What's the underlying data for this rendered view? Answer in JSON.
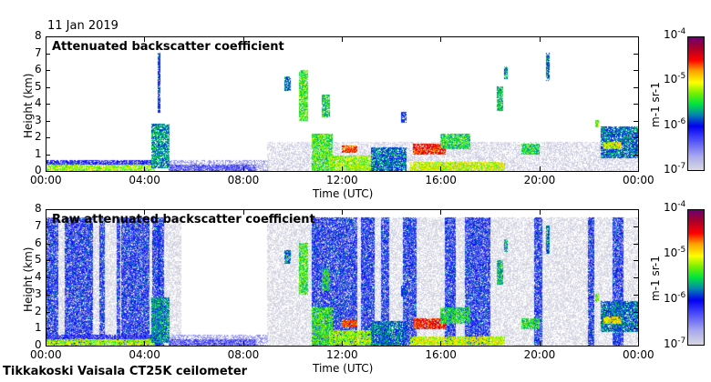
{
  "date_label": "11 Jan 2019",
  "footer": "Tikkakoski Vaisala CT25K ceilometer",
  "chart_data": [
    {
      "type": "heatmap",
      "title": "Attenuated backscatter coefficient",
      "xlabel": "Time (UTC)",
      "ylabel": "Height (km)",
      "xlim": [
        0,
        24
      ],
      "ylim": [
        0,
        8
      ],
      "x_ticks": [
        "00:00",
        "04:00",
        "08:00",
        "12:00",
        "16:00",
        "20:00",
        "00:00"
      ],
      "y_ticks": [
        "0",
        "1",
        "2",
        "3",
        "4",
        "5",
        "6",
        "7",
        "8"
      ],
      "colorbar": {
        "label": "m-1 sr-1",
        "range_log10": [
          -7,
          -4
        ],
        "ticks": [
          "-7",
          "-6",
          "-5",
          "-4"
        ]
      },
      "noise_columns": [],
      "background": [
        {
          "t0": 5,
          "t1": 9,
          "h0": 0,
          "h1": 0.6,
          "logv": -6.6
        },
        {
          "t0": 9,
          "t1": 24,
          "h0": 0,
          "h1": 1.7,
          "logv": -6.95
        }
      ],
      "features": [
        {
          "t0": 0,
          "t1": 4.4,
          "h0": 0,
          "h1": 0.4,
          "logv": -5.2
        },
        {
          "t0": 0,
          "t1": 4.4,
          "h0": 0.4,
          "h1": 0.6,
          "logv": -6.2
        },
        {
          "t0": 4.3,
          "t1": 5.0,
          "h0": 0.2,
          "h1": 2.8,
          "logv": -5.7
        },
        {
          "t0": 4.55,
          "t1": 4.65,
          "h0": 3.5,
          "h1": 7,
          "logv": -6.0
        },
        {
          "t0": 5,
          "t1": 8.5,
          "h0": 0,
          "h1": 0.35,
          "logv": -6.4
        },
        {
          "t0": 9.7,
          "t1": 9.9,
          "h0": 4.8,
          "h1": 5.6,
          "logv": -5.8
        },
        {
          "t0": 10.3,
          "t1": 10.6,
          "h0": 3,
          "h1": 6,
          "logv": -5.4
        },
        {
          "t0": 11.2,
          "t1": 11.5,
          "h0": 3.2,
          "h1": 4.5,
          "logv": -5.5
        },
        {
          "t0": 10.8,
          "t1": 11.6,
          "h0": 0,
          "h1": 2.2,
          "logv": -5.4
        },
        {
          "t0": 11.5,
          "t1": 13.2,
          "h0": 0,
          "h1": 0.9,
          "logv": -5.2
        },
        {
          "t0": 12.0,
          "t1": 12.6,
          "h0": 1.1,
          "h1": 1.5,
          "logv": -4.6
        },
        {
          "t0": 13.2,
          "t1": 14.6,
          "h0": 0,
          "h1": 1.4,
          "logv": -5.8
        },
        {
          "t0": 14.4,
          "t1": 14.6,
          "h0": 2.9,
          "h1": 3.5,
          "logv": -6.0
        },
        {
          "t0": 14.9,
          "t1": 16.2,
          "h0": 1.0,
          "h1": 1.6,
          "logv": -4.5
        },
        {
          "t0": 14.8,
          "t1": 18.6,
          "h0": 0,
          "h1": 0.5,
          "logv": -5.1
        },
        {
          "t0": 16.0,
          "t1": 17.2,
          "h0": 1.3,
          "h1": 2.2,
          "logv": -5.5
        },
        {
          "t0": 18.3,
          "t1": 18.5,
          "h0": 3.6,
          "h1": 5.0,
          "logv": -5.6
        },
        {
          "t0": 18.6,
          "t1": 18.7,
          "h0": 5.5,
          "h1": 6.2,
          "logv": -5.7
        },
        {
          "t0": 19.3,
          "t1": 20.0,
          "h0": 1.0,
          "h1": 1.6,
          "logv": -5.5
        },
        {
          "t0": 20.3,
          "t1": 20.4,
          "h0": 5.4,
          "h1": 7.0,
          "logv": -5.8
        },
        {
          "t0": 22.3,
          "t1": 22.4,
          "h0": 2.6,
          "h1": 3.0,
          "logv": -5.3
        },
        {
          "t0": 22.5,
          "t1": 24,
          "h0": 0.8,
          "h1": 2.6,
          "logv": -5.8
        },
        {
          "t0": 22.6,
          "t1": 23.3,
          "h0": 1.3,
          "h1": 1.7,
          "logv": -5.0
        }
      ]
    },
    {
      "type": "heatmap",
      "title": "Raw attenuated backscatter coefficient",
      "xlabel": "Time (UTC)",
      "ylabel": "Height (km)",
      "xlim": [
        0,
        24
      ],
      "ylim": [
        0,
        8
      ],
      "x_ticks": [
        "00:00",
        "04:00",
        "08:00",
        "12:00",
        "16:00",
        "20:00",
        "00:00"
      ],
      "y_ticks": [
        "0",
        "1",
        "2",
        "3",
        "4",
        "5",
        "6",
        "7",
        "8"
      ],
      "colorbar": {
        "label": "m-1 sr-1",
        "range_log10": [
          -7,
          -4
        ],
        "ticks": [
          "-7",
          "-6",
          "-5",
          "-4"
        ]
      },
      "noise_columns": [
        [
          0,
          0.5
        ],
        [
          0.8,
          1.9
        ],
        [
          2.2,
          2.4
        ],
        [
          2.9,
          3.0
        ],
        [
          3.1,
          4.2
        ],
        [
          4.35,
          4.8
        ],
        [
          10.8,
          12.6
        ],
        [
          12.8,
          13.3
        ],
        [
          13.6,
          13.9
        ],
        [
          14.5,
          15.0
        ],
        [
          16.2,
          16.6
        ],
        [
          17.0,
          18.0
        ],
        [
          19.8,
          20.1
        ],
        [
          22.0,
          22.2
        ],
        [
          23.0,
          23.4
        ]
      ],
      "background": [
        {
          "t0": 0,
          "t1": 5.5,
          "h0": 0,
          "h1": 7.5,
          "logv": -7.0
        },
        {
          "t0": 9,
          "t1": 24,
          "h0": 0,
          "h1": 7.5,
          "logv": -7.0
        },
        {
          "t0": 5,
          "t1": 9,
          "h0": 0,
          "h1": 0.6,
          "logv": -6.6
        }
      ],
      "features": "same_as_panel_0"
    }
  ]
}
